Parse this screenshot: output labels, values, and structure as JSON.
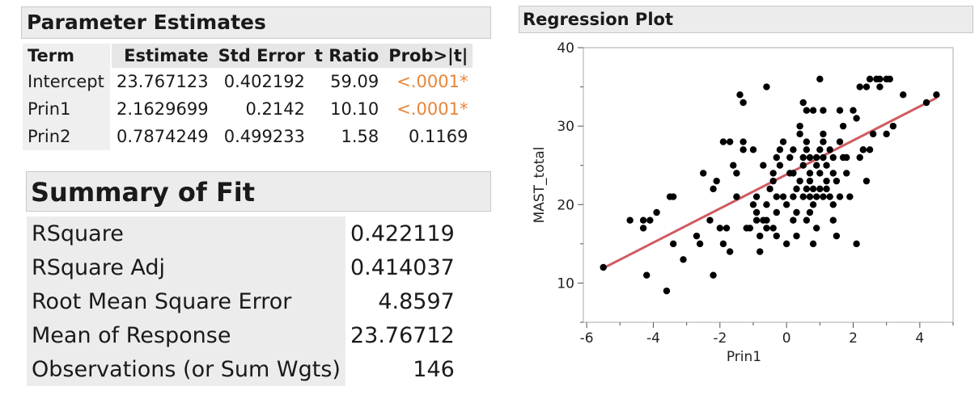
{
  "parameter_estimates": {
    "title": "Parameter Estimates",
    "columns": [
      "Term",
      "Estimate",
      "Std Error",
      "t Ratio",
      "Prob>|t|"
    ],
    "rows": [
      {
        "term": "Intercept",
        "estimate": "23.767123",
        "std_error": "0.402192",
        "t_ratio": "59.09",
        "prob": "<.0001*",
        "significant": true
      },
      {
        "term": "Prin1",
        "estimate": "2.1629699",
        "std_error": "0.2142",
        "t_ratio": "10.10",
        "prob": "<.0001*",
        "significant": true
      },
      {
        "term": "Prin2",
        "estimate": "0.7874249",
        "std_error": "0.499233",
        "t_ratio": "1.58",
        "prob": "0.1169",
        "significant": false
      }
    ]
  },
  "summary_of_fit": {
    "title": "Summary of Fit",
    "rows": [
      {
        "label": "RSquare",
        "value": "0.422119"
      },
      {
        "label": "RSquare Adj",
        "value": "0.414037"
      },
      {
        "label": "Root Mean Square Error",
        "value": "4.8597"
      },
      {
        "label": "Mean of Response",
        "value": "23.76712"
      },
      {
        "label": "Observations (or Sum Wgts)",
        "value": "146"
      }
    ]
  },
  "regression_plot": {
    "title": "Regression Plot"
  },
  "colors": {
    "significant": "#e8863a",
    "fit_line": "#d05a60",
    "points": "#000000"
  },
  "chart_data": {
    "type": "scatter",
    "title": "Regression Plot",
    "xlabel": "Prin1",
    "ylabel": "MAST_total",
    "xlim": [
      -6,
      5
    ],
    "ylim": [
      5,
      40
    ],
    "xticks": [
      -6,
      -4,
      -2,
      0,
      2,
      4
    ],
    "yticks": [
      10,
      20,
      30,
      40
    ],
    "grid": false,
    "fit_line": {
      "x": [
        -5.5,
        4.5
      ],
      "y": [
        11.9,
        33.6
      ]
    },
    "points": [
      [
        -5.5,
        12
      ],
      [
        -4.7,
        18
      ],
      [
        -4.3,
        17
      ],
      [
        -4.3,
        18
      ],
      [
        -4.1,
        18
      ],
      [
        -3.9,
        19
      ],
      [
        -4.2,
        11
      ],
      [
        -3.6,
        9
      ],
      [
        -3.5,
        21
      ],
      [
        -3.4,
        21
      ],
      [
        -3.1,
        13
      ],
      [
        -3.4,
        15
      ],
      [
        -2.7,
        16
      ],
      [
        -2.6,
        15
      ],
      [
        -2.5,
        24
      ],
      [
        -2.2,
        22
      ],
      [
        -2.1,
        23
      ],
      [
        -2.3,
        18
      ],
      [
        -2.2,
        11
      ],
      [
        -1.9,
        15
      ],
      [
        -1.8,
        17
      ],
      [
        -1.7,
        14
      ],
      [
        -1.6,
        25
      ],
      [
        -1.7,
        28
      ],
      [
        -1.5,
        21
      ],
      [
        -1.5,
        24
      ],
      [
        -1.4,
        34
      ],
      [
        -1.3,
        33
      ],
      [
        -1.3,
        28
      ],
      [
        -1.2,
        17
      ],
      [
        -1.1,
        17
      ],
      [
        -1.0,
        20
      ],
      [
        -1.3,
        27
      ],
      [
        -1.0,
        27
      ],
      [
        -0.9,
        19
      ],
      [
        -0.9,
        18
      ],
      [
        -0.8,
        14
      ],
      [
        -0.8,
        16
      ],
      [
        -0.7,
        18
      ],
      [
        -0.6,
        17
      ],
      [
        -0.6,
        18
      ],
      [
        -0.6,
        20
      ],
      [
        -0.5,
        22
      ],
      [
        -0.4,
        24
      ],
      [
        -0.4,
        23
      ],
      [
        -0.3,
        21
      ],
      [
        -0.3,
        19
      ],
      [
        -0.4,
        17
      ],
      [
        -0.2,
        25
      ],
      [
        -0.2,
        27
      ],
      [
        -0.1,
        28
      ],
      [
        -0.1,
        21
      ],
      [
        0.0,
        20
      ],
      [
        0.1,
        24
      ],
      [
        0.0,
        15
      ],
      [
        -0.3,
        16
      ],
      [
        0.1,
        26
      ],
      [
        0.2,
        27
      ],
      [
        0.2,
        21
      ],
      [
        0.2,
        24
      ],
      [
        0.3,
        22
      ],
      [
        0.3,
        19
      ],
      [
        0.3,
        16
      ],
      [
        0.4,
        23
      ],
      [
        0.4,
        30
      ],
      [
        0.5,
        25
      ],
      [
        0.5,
        21
      ],
      [
        0.5,
        33
      ],
      [
        0.6,
        32
      ],
      [
        0.6,
        28
      ],
      [
        0.6,
        27
      ],
      [
        0.6,
        22
      ],
      [
        0.6,
        18
      ],
      [
        0.7,
        26
      ],
      [
        0.7,
        24
      ],
      [
        0.7,
        23
      ],
      [
        0.7,
        21
      ],
      [
        0.7,
        19
      ],
      [
        0.8,
        32
      ],
      [
        0.8,
        22
      ],
      [
        0.8,
        20
      ],
      [
        0.9,
        25
      ],
      [
        0.9,
        21
      ],
      [
        0.9,
        17
      ],
      [
        1.0,
        36
      ],
      [
        1.0,
        27
      ],
      [
        1.0,
        24
      ],
      [
        1.0,
        22
      ],
      [
        1.1,
        32
      ],
      [
        1.1,
        28
      ],
      [
        1.1,
        26
      ],
      [
        1.1,
        21
      ],
      [
        1.2,
        25
      ],
      [
        1.2,
        23
      ],
      [
        1.2,
        22
      ],
      [
        1.3,
        27
      ],
      [
        1.3,
        21
      ],
      [
        1.4,
        26
      ],
      [
        1.4,
        24
      ],
      [
        1.4,
        20
      ],
      [
        1.5,
        16
      ],
      [
        1.5,
        23
      ],
      [
        1.6,
        32
      ],
      [
        1.6,
        28
      ],
      [
        1.6,
        21
      ],
      [
        1.7,
        26
      ],
      [
        1.8,
        26
      ],
      [
        1.8,
        24
      ],
      [
        1.9,
        21
      ],
      [
        2.0,
        32
      ],
      [
        2.1,
        31
      ],
      [
        2.1,
        15
      ],
      [
        2.2,
        35
      ],
      [
        2.2,
        26
      ],
      [
        2.3,
        27
      ],
      [
        2.4,
        35
      ],
      [
        2.4,
        23
      ],
      [
        2.5,
        36
      ],
      [
        2.5,
        27
      ],
      [
        2.6,
        29
      ],
      [
        2.7,
        36
      ],
      [
        2.8,
        36
      ],
      [
        2.8,
        35
      ],
      [
        3.0,
        36
      ],
      [
        3.1,
        36
      ],
      [
        3.2,
        30
      ],
      [
        3.0,
        29
      ],
      [
        3.5,
        34
      ],
      [
        4.2,
        33
      ],
      [
        4.5,
        34
      ],
      [
        1.4,
        18
      ],
      [
        0.8,
        15
      ],
      [
        -0.6,
        35
      ],
      [
        1.1,
        29
      ],
      [
        -0.3,
        26
      ],
      [
        0.4,
        29
      ],
      [
        -1.9,
        28
      ],
      [
        0.9,
        26
      ],
      [
        -0.9,
        21
      ],
      [
        2.3,
        27
      ],
      [
        -0.7,
        25
      ],
      [
        0.2,
        18
      ],
      [
        -2.0,
        17
      ],
      [
        1.7,
        30
      ],
      [
        0.5,
        26
      ]
    ]
  }
}
